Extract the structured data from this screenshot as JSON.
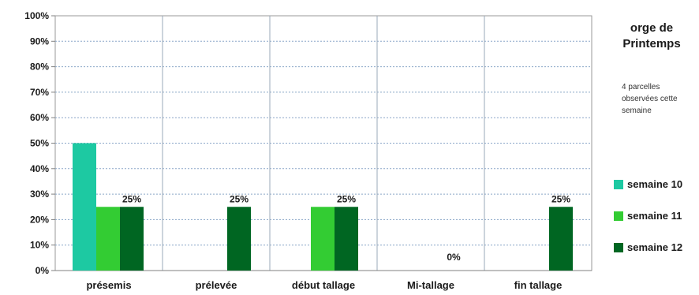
{
  "chart_data": {
    "type": "bar",
    "title": "orge de Printemps",
    "subtitle": "4 parcelles observées cette semaine",
    "categories": [
      "présemis",
      "prélevée",
      "début tallage",
      "Mi-tallage",
      "fin tallage"
    ],
    "series": [
      {
        "name": "semaine 10",
        "color": "#1dc9a2",
        "values": [
          50,
          0,
          0,
          0,
          0
        ]
      },
      {
        "name": "semaine 11",
        "color": "#33cc33",
        "values": [
          25,
          0,
          25,
          0,
          0
        ]
      },
      {
        "name": "semaine 12",
        "color": "#006622",
        "values": [
          25,
          25,
          25,
          0,
          25
        ]
      }
    ],
    "data_labels": [
      "25%",
      "25%",
      "25%",
      "0%",
      "25%"
    ],
    "y_ticks": [
      "0%",
      "10%",
      "20%",
      "30%",
      "40%",
      "50%",
      "60%",
      "70%",
      "80%",
      "90%",
      "100%"
    ],
    "ylim": [
      0,
      100
    ],
    "grid": true,
    "legend_position": "right"
  }
}
